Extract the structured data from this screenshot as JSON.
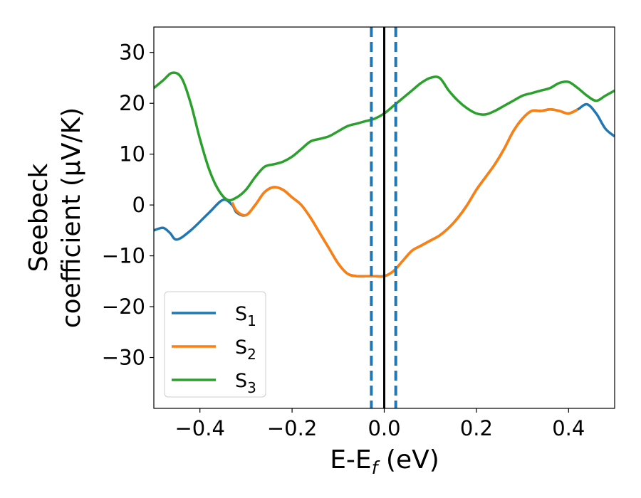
{
  "chart_data": {
    "type": "line",
    "xlabel": {
      "main": "E-E",
      "sub": "f",
      "rest": " (eV)"
    },
    "ylabel": [
      "Seebeck",
      "coefficient  (μV/K)"
    ],
    "xlim": [
      -0.5,
      0.5
    ],
    "ylim": [
      -40,
      35
    ],
    "xticks": [
      -0.4,
      -0.2,
      0.0,
      0.2,
      0.4
    ],
    "xtick_labels": [
      "−0.4",
      "−0.2",
      "0.0",
      "0.2",
      "0.4"
    ],
    "yticks": [
      -30,
      -20,
      -10,
      0,
      10,
      20,
      30
    ],
    "ytick_labels": [
      "−30",
      "−20",
      "−10",
      "0",
      "10",
      "20",
      "30"
    ],
    "grid": false,
    "legend_position": "lower-left",
    "vlines": [
      {
        "x": 0.0,
        "style": "solid",
        "color": "#000000"
      },
      {
        "x": -0.028,
        "style": "dashed",
        "color": "#1f77b4"
      },
      {
        "x": 0.025,
        "style": "dashed",
        "color": "#1f77b4"
      }
    ],
    "series": [
      {
        "name": "S",
        "sub": "1",
        "color": "#1f77b4",
        "x": [
          -0.5,
          -0.48,
          -0.465,
          -0.45,
          -0.42,
          -0.38,
          -0.35,
          -0.33,
          -0.32,
          -0.3,
          -0.28,
          -0.26,
          -0.24,
          -0.22,
          -0.2,
          -0.18,
          -0.16,
          -0.14,
          -0.12,
          -0.1,
          -0.08,
          -0.06,
          -0.04,
          -0.02,
          0.0,
          0.02,
          0.04,
          0.06,
          0.08,
          0.1,
          0.12,
          0.14,
          0.16,
          0.18,
          0.2,
          0.22,
          0.24,
          0.26,
          0.28,
          0.3,
          0.32,
          0.34,
          0.36,
          0.38,
          0.4,
          0.42,
          0.44,
          0.46,
          0.48,
          0.5
        ],
        "y": [
          -5,
          -4.5,
          -5.5,
          -6.8,
          -5,
          -1.5,
          1,
          0,
          -1.5,
          -2,
          0,
          2.5,
          3.5,
          3,
          1.5,
          0,
          -2.5,
          -5.5,
          -8.5,
          -11.5,
          -13.5,
          -14,
          -14,
          -14,
          -14,
          -13,
          -11,
          -9,
          -8,
          -7,
          -6,
          -4.5,
          -2.5,
          0,
          3,
          5.5,
          8,
          11,
          14.5,
          17,
          18.5,
          18.5,
          18.8,
          18.5,
          18,
          18.8,
          19.8,
          18,
          15,
          13.5
        ]
      },
      {
        "name": "S",
        "sub": "2",
        "color": "#ff7f0e",
        "x": [
          -0.33,
          -0.32,
          -0.3,
          -0.28,
          -0.26,
          -0.24,
          -0.22,
          -0.2,
          -0.18,
          -0.16,
          -0.14,
          -0.12,
          -0.1,
          -0.08,
          -0.06,
          -0.04,
          -0.02,
          0.0,
          0.02,
          0.04,
          0.06,
          0.08,
          0.1,
          0.12,
          0.14,
          0.16,
          0.18,
          0.2,
          0.22,
          0.24,
          0.26,
          0.28,
          0.3,
          0.32,
          0.34,
          0.36,
          0.38,
          0.4,
          0.42
        ],
        "y": [
          0.5,
          -1.2,
          -2,
          0,
          2.5,
          3.5,
          3,
          1.5,
          0,
          -2.5,
          -5.5,
          -8.5,
          -11.5,
          -13.5,
          -14,
          -14,
          -14,
          -14,
          -13,
          -11,
          -9,
          -8,
          -7,
          -6,
          -4.5,
          -2.5,
          0,
          3,
          5.5,
          8,
          11,
          14.5,
          17,
          18.5,
          18.5,
          18.8,
          18.5,
          18,
          18.8
        ]
      },
      {
        "name": "S",
        "sub": "3",
        "color": "#2ca02c",
        "x": [
          -0.5,
          -0.48,
          -0.46,
          -0.44,
          -0.42,
          -0.4,
          -0.38,
          -0.36,
          -0.34,
          -0.32,
          -0.3,
          -0.28,
          -0.26,
          -0.24,
          -0.22,
          -0.2,
          -0.18,
          -0.16,
          -0.14,
          -0.12,
          -0.1,
          -0.08,
          -0.06,
          -0.04,
          -0.02,
          0.0,
          0.02,
          0.04,
          0.06,
          0.08,
          0.1,
          0.12,
          0.14,
          0.16,
          0.18,
          0.2,
          0.22,
          0.24,
          0.26,
          0.28,
          0.3,
          0.32,
          0.34,
          0.36,
          0.38,
          0.4,
          0.42,
          0.44,
          0.46,
          0.48,
          0.5
        ],
        "y": [
          23,
          24.5,
          26,
          25,
          20,
          13,
          7,
          3,
          1,
          1.5,
          3,
          5.5,
          7.5,
          8,
          8.5,
          9.5,
          11,
          12.5,
          13,
          13.5,
          14.5,
          15.5,
          16,
          16.5,
          17,
          18,
          19.5,
          21,
          22.5,
          24,
          25,
          25,
          22.5,
          20.5,
          19,
          18,
          17.8,
          18.5,
          19.5,
          20.5,
          21.5,
          22,
          22.5,
          23,
          24,
          24.2,
          23,
          21.5,
          20.5,
          21.5,
          22.5
        ]
      }
    ]
  }
}
